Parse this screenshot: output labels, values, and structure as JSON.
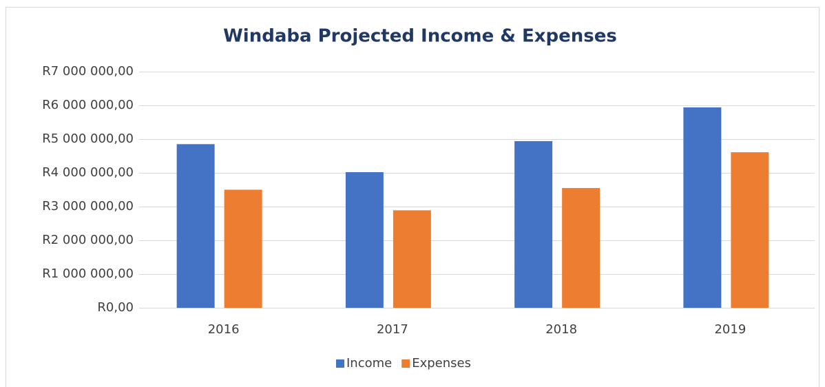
{
  "chart_data": {
    "type": "bar",
    "title": "Windaba Projected Income & Expenses",
    "categories": [
      "2016",
      "2017",
      "2018",
      "2019"
    ],
    "series": [
      {
        "name": "Income",
        "color": "#4472c4",
        "values": [
          4850000,
          4020000,
          4940000,
          5940000
        ]
      },
      {
        "name": "Expenses",
        "color": "#ed7d31",
        "values": [
          3500000,
          2890000,
          3550000,
          4610000
        ]
      }
    ],
    "ylim": [
      0,
      7000000
    ],
    "yticks": [
      {
        "value": 0,
        "label": "R0,00"
      },
      {
        "value": 1000000,
        "label": "R1 000 000,00"
      },
      {
        "value": 2000000,
        "label": "R2 000 000,00"
      },
      {
        "value": 3000000,
        "label": "R3 000 000,00"
      },
      {
        "value": 4000000,
        "label": "R4 000 000,00"
      },
      {
        "value": 5000000,
        "label": "R5 000 000,00"
      },
      {
        "value": 6000000,
        "label": "R6 000 000,00"
      },
      {
        "value": 7000000,
        "label": "R7 000 000,00"
      }
    ],
    "grid": true,
    "legend": "bottom"
  }
}
